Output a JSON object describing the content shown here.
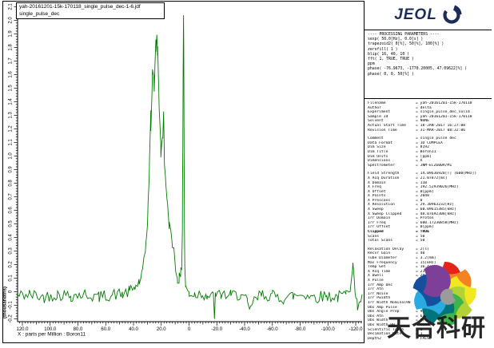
{
  "window": {
    "title_line1": "yah-20161201-15k-170118_single_pulse_dec-1-6.jdf",
    "title_line2": "single_pulse_dec"
  },
  "branding": {
    "logo_text": "JEOL",
    "logo_color": "#1c2d5a"
  },
  "watermark": {
    "text": "天合科研",
    "pinwheel_colors": [
      "#e5231b",
      "#f58220",
      "#f2e822",
      "#b2d235",
      "#3db54a",
      "#00747a",
      "#29aae1",
      "#164f9c",
      "#7d3f98"
    ],
    "pinwheel_center_color": "#9b9b9b"
  },
  "panel": {
    "processing_lines": [
      "---- PROCESSING PARAMETERS ----",
      "sexp( 50.0[Hz], 0.0[s] )",
      "trapezoid2( 0[%], 50[%], 100[%] )",
      "zerofill( 1 )",
      "blip( 16, 40, 10 )",
      "fft( 1, TRUE, TRUE )",
      "ppm",
      "phase( -76.9673, -1770.20005, 47.09622[%] )",
      "phase( 0, 0, 50[%] )"
    ],
    "info_groups": [
      [
        [
          "Filename",
          "yah-20161201-15k-170118"
        ],
        [
          "Author",
          "delta"
        ],
        [
          "Experiment",
          "single_pulse_dec_solid"
        ],
        [
          "Sample Id",
          "yah-20161201-15k-170118"
        ],
        [
          "Solvent",
          "NONE"
        ],
        [
          "Actual Start Time",
          "18-JAN-2017 16:27:08"
        ],
        [
          "Revision Time",
          "31-MAR-2017 08:32:06"
        ]
      ],
      [
        [
          "Comment",
          "single pulse dec"
        ],
        [
          "Data Format",
          "1D COMPLEX"
        ],
        [
          "Dim Size",
          "8192"
        ],
        [
          "Dim Title",
          "Boron11"
        ],
        [
          "Dim Units",
          "[ppm]"
        ],
        [
          "Dimensions",
          "X"
        ],
        [
          "Spectrometer",
          "JNM-ECZ600R/M1"
        ]
      ],
      [
        [
          "Field Strength",
          "14.09636928[T] (600[MHz])"
        ],
        [
          "X Acq Duration",
          "21.07872[ms]"
        ],
        [
          "X Domain",
          "11B"
        ],
        [
          "X Freq",
          "192.52939026[MHz]"
        ],
        [
          "X Offset",
          "0[ppm]"
        ],
        [
          "X Points",
          "2048"
        ],
        [
          "X Prescans",
          "0"
        ],
        [
          "X Resolution",
          "29.30963232[Hz]"
        ],
        [
          "X Sweep",
          "60.09615385[kHz]"
        ],
        [
          "X Sweep Clipped",
          "48.07692308[kHz]"
        ],
        [
          "Irr Domain",
          "Proton"
        ],
        [
          "Irr Freq",
          "600.17230858[MHz]"
        ],
        [
          "Irr Offset",
          "0[ppm]"
        ],
        [
          "Clipped",
          "TRUE",
          "b"
        ],
        [
          "Scans",
          "50"
        ],
        [
          "Total Scans",
          "50"
        ]
      ],
      [
        [
          "Relaxation Delay",
          "2[s]"
        ],
        [
          "Recvr Gain",
          "40"
        ],
        [
          "Tube Diameter",
          "3.2[mm]"
        ],
        [
          "Mas Frequency",
          "15[kHz]"
        ],
        [
          "Temp Get",
          "16.4[dC]"
        ],
        [
          "X Acq Time",
          "21.07872[ms]"
        ],
        [
          "X Dwell",
          "20.8[us]"
        ],
        [
          "X Pulse",
          "0.75[us]"
        ],
        [
          "Irr Amp Dec",
          "10[%]"
        ],
        [
          "Irr Atn",
          "10[dB]"
        ],
        [
          "Irr Noise",
          "TRUE"
        ],
        [
          "Irr Pwidth",
          "2.5[us]"
        ],
        [
          "Irr Width Nominal90",
          "2.5[us]"
        ],
        [
          "Obs Amp Pulse",
          "100[%]"
        ],
        [
          "Obs Angle Prep",
          "90[deg]"
        ],
        [
          "Obs Atn",
          "6[dB]"
        ],
        [
          "Obs Width",
          "6[us]"
        ],
        [
          "Obs Width 90",
          "6[us]"
        ],
        [
          "Scientific Touch",
          "1"
        ],
        [
          "Decimation Rate",
          "1"
        ],
        [
          "Depth2",
          "FALSE"
        ]
      ]
    ]
  },
  "chart_data": {
    "type": "line",
    "title": "yah-20161201-15k-170118_single_pulse_dec-1-6.jdf",
    "xlabel": "X : parts per Million : Boron11",
    "ylabel": "(thousandths)",
    "xlim": [
      123.5,
      -124.6
    ],
    "ylim": [
      -0.22,
      2.12
    ],
    "x_ticks_major": [
      120,
      100,
      80,
      60,
      40,
      20,
      0,
      -20,
      -40,
      -60,
      -80,
      -100,
      -120
    ],
    "x_tick_minor_step": 2,
    "y_ticks_major": [
      2.1,
      2.0,
      1.9,
      1.8,
      1.7,
      1.6,
      1.5,
      1.4,
      1.3,
      1.2,
      1.1,
      1.0,
      0.9,
      0.8,
      0.7,
      0.6,
      0.5,
      0.4,
      0.3,
      0.2,
      0.1,
      0,
      -0.1,
      -0.2
    ],
    "y_tick_minor_step": 0.02,
    "grid": false,
    "line_color": "#007d00",
    "peaks_summary": [
      {
        "center_ppm": 23.2,
        "height_thousandths": 1.91,
        "type": "broad"
      },
      {
        "center_ppm": 18.3,
        "height_thousandths": 1.26,
        "type": "shoulder"
      },
      {
        "center_ppm": 4.0,
        "height_thousandths": 2.05,
        "type": "sharp"
      }
    ],
    "anchors": [
      [
        123.5,
        -0.03
      ],
      [
        115,
        -0.02
      ],
      [
        105,
        -0.04
      ],
      [
        95,
        -0.02
      ],
      [
        85,
        -0.03
      ],
      [
        75,
        -0.02
      ],
      [
        65,
        -0.04
      ],
      [
        55,
        -0.02
      ],
      [
        48,
        -0.02
      ],
      [
        43,
        0.0
      ],
      [
        39,
        0.03
      ],
      [
        36,
        0.07
      ],
      [
        34,
        0.12
      ],
      [
        32.5,
        0.2
      ],
      [
        31.5,
        0.3
      ],
      [
        30.5,
        0.44
      ],
      [
        29.5,
        0.62
      ],
      [
        28.5,
        0.92
      ],
      [
        27.5,
        1.26
      ],
      [
        26.6,
        1.5
      ],
      [
        25.9,
        1.68
      ],
      [
        25.3,
        1.5
      ],
      [
        24.6,
        1.62
      ],
      [
        23.9,
        1.82
      ],
      [
        23.2,
        1.91
      ],
      [
        22.6,
        1.78
      ],
      [
        21.8,
        1.52
      ],
      [
        21.0,
        1.22
      ],
      [
        20.3,
        1.02
      ],
      [
        19.6,
        1.05
      ],
      [
        18.9,
        1.2
      ],
      [
        18.3,
        1.26
      ],
      [
        17.7,
        1.02
      ],
      [
        16.9,
        0.8
      ],
      [
        15.8,
        0.62
      ],
      [
        14.3,
        0.5
      ],
      [
        12.5,
        0.43
      ],
      [
        11,
        0.3
      ],
      [
        9.6,
        0.17
      ],
      [
        8.4,
        0.11
      ],
      [
        7.2,
        0.09
      ],
      [
        6.1,
        0.1
      ],
      [
        5.3,
        0.2
      ],
      [
        4.8,
        0.5
      ],
      [
        4.5,
        1.1
      ],
      [
        4.2,
        1.75
      ],
      [
        4.0,
        2.05
      ],
      [
        3.8,
        1.8
      ],
      [
        3.55,
        1.05
      ],
      [
        3.3,
        0.45
      ],
      [
        3.05,
        0.15
      ],
      [
        2.5,
        0.05
      ],
      [
        1.5,
        0.01
      ],
      [
        0,
        -0.01
      ],
      [
        -4,
        -0.02
      ],
      [
        -9,
        -0.01
      ],
      [
        -13,
        -0.03
      ],
      [
        -17.5,
        -0.04
      ],
      [
        -18.3,
        -0.17
      ],
      [
        -19,
        -0.04
      ],
      [
        -23,
        -0.02
      ],
      [
        -30,
        -0.03
      ],
      [
        -37,
        -0.02
      ],
      [
        -42,
        -0.08
      ],
      [
        -43.5,
        -0.16
      ],
      [
        -45,
        -0.09
      ],
      [
        -52,
        -0.02
      ],
      [
        -60,
        -0.03
      ],
      [
        -68,
        -0.05
      ],
      [
        -75,
        -0.03
      ],
      [
        -83,
        -0.02
      ],
      [
        -91,
        -0.04
      ],
      [
        -99,
        -0.03
      ],
      [
        -107,
        -0.04
      ],
      [
        -113,
        -0.02
      ],
      [
        -116,
        0.04
      ],
      [
        -118,
        0.24
      ],
      [
        -119.5,
        -0.02
      ],
      [
        -121,
        -0.1
      ],
      [
        -123,
        -0.06
      ],
      [
        -124.6,
        -0.05
      ]
    ],
    "noise": {
      "seed": 42,
      "amp": 0.045,
      "height_scale": 0.9,
      "step_ppm": 1.2
    }
  }
}
